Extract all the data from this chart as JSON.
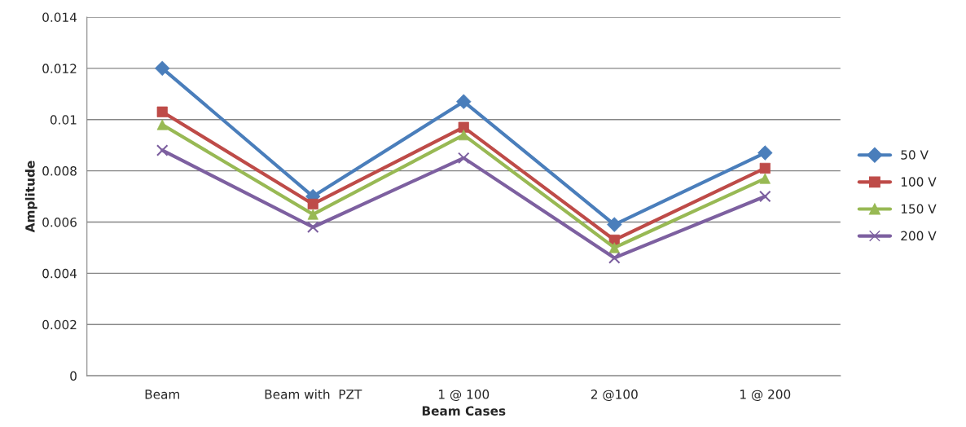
{
  "chart_data": {
    "type": "line",
    "xlabel": "Beam Cases",
    "ylabel": "Amplitude",
    "categories": [
      "Beam",
      "Beam with  PZT",
      "1 @ 100",
      "2 @100",
      "1 @ 200"
    ],
    "series": [
      {
        "name": "50 V",
        "color": "#4a7ebb",
        "marker": "diamond",
        "values": [
          0.012,
          0.007,
          0.0107,
          0.0059,
          0.0087
        ]
      },
      {
        "name": "100 V",
        "color": "#be4b48",
        "marker": "square",
        "values": [
          0.0103,
          0.0067,
          0.0097,
          0.0053,
          0.0081
        ]
      },
      {
        "name": "150 V",
        "color": "#98b954",
        "marker": "triangle",
        "values": [
          0.0098,
          0.0063,
          0.0094,
          0.005,
          0.0077
        ]
      },
      {
        "name": "200 V",
        "color": "#7d60a0",
        "marker": "cross",
        "values": [
          0.0088,
          0.0058,
          0.0085,
          0.0046,
          0.007
        ]
      }
    ],
    "ylim": [
      0,
      0.014
    ],
    "yticks": [
      0,
      0.002,
      0.004,
      0.006,
      0.008,
      0.01,
      0.012,
      0.014
    ],
    "grid": "y",
    "legend": "right",
    "line_style": "solid"
  }
}
